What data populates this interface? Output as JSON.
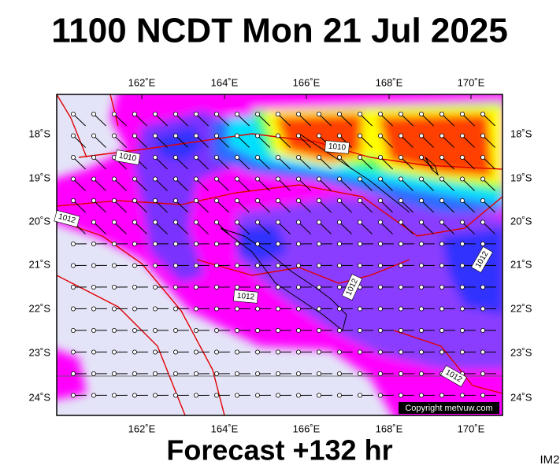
{
  "title": "1100 NCDT Mon 21 Jul 2025",
  "lon_labels": [
    "162˚E",
    "164˚E",
    "166˚E",
    "168˚E",
    "170˚E"
  ],
  "lat_labels": [
    "18˚S",
    "19˚S",
    "20˚S",
    "21˚S",
    "22˚S",
    "23˚S",
    "24˚S"
  ],
  "isobar_labels": [
    "1010",
    "1010",
    "1012",
    "1012",
    "1012",
    "1012",
    "1012"
  ],
  "copyright": "Copyright metvuw.com",
  "footer": "Forecast +132 hr",
  "image_id": "IM2"
}
